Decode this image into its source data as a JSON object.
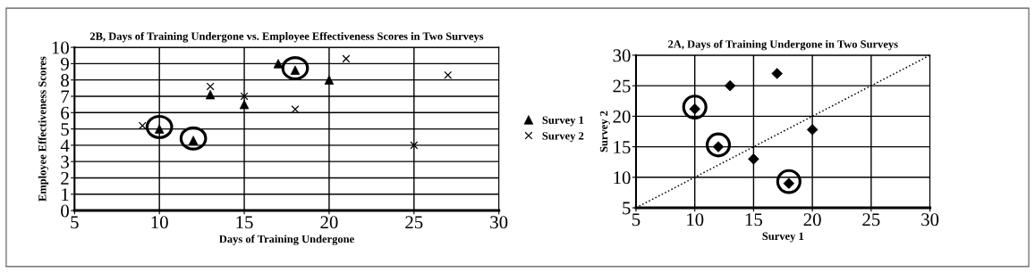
{
  "chart_data": [
    {
      "type": "scatter",
      "title": "2B, Days of Training Undergone vs. Employee Effectiveness Scores in Two Surveys",
      "xlabel": "Days of Training Undergone",
      "ylabel": "Employee Effectiveness Scores",
      "xlim": [
        5,
        30
      ],
      "xticks": [
        5,
        10,
        15,
        20,
        25,
        30
      ],
      "ylim": [
        0,
        10
      ],
      "yticks": [
        0,
        1,
        2,
        3,
        4,
        5,
        6,
        7,
        8,
        9,
        10
      ],
      "grid": true,
      "legend": "right",
      "series": [
        {
          "name": "Survey 1",
          "color": "#000000",
          "marker": "triangle",
          "x": [
            10,
            12,
            13,
            15,
            17,
            18,
            20
          ],
          "values": [
            5.0,
            4.3,
            7.1,
            6.5,
            9.0,
            8.6,
            8.0
          ]
        },
        {
          "name": "Survey 2",
          "color": "#000000",
          "marker": "cross",
          "x": [
            9,
            13,
            15,
            18,
            21,
            25,
            27
          ],
          "values": [
            5.2,
            7.6,
            7.0,
            6.2,
            9.3,
            4.0,
            8.3
          ]
        }
      ]
    },
    {
      "type": "scatter",
      "title": "2A, Days of Training Undergone in Two Surveys",
      "xlabel": "Survey 1",
      "ylabel": "Survey 2",
      "xlim": [
        5,
        30
      ],
      "xticks": [
        5,
        10,
        15,
        20,
        25,
        30
      ],
      "ylim": [
        5,
        30
      ],
      "yticks": [
        5,
        10,
        15,
        20,
        25,
        30
      ],
      "grid": true,
      "series": [
        {
          "color": "#000000",
          "marker": "diamond",
          "x": [
            10,
            12,
            13,
            15,
            17,
            18,
            20
          ],
          "values": [
            21.2,
            15.0,
            25.0,
            13.0,
            27.0,
            9.0,
            17.8
          ]
        },
        {
          "type": "line",
          "color": "#000000",
          "line_style": "dotted",
          "marker": "none",
          "x": [
            5,
            30
          ],
          "values": [
            5,
            30
          ]
        }
      ]
    }
  ]
}
